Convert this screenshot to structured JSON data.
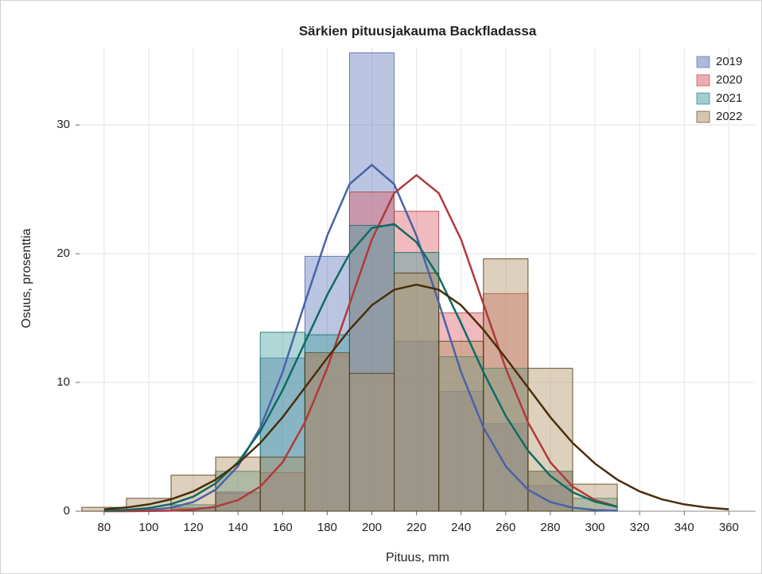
{
  "chart_data": {
    "type": "histogram",
    "title": "Särkien pituusjakauma Backfladassa",
    "x_label": "Pituus, mm",
    "y_label": "Osuus, prosenttia",
    "bins": [
      70,
      90,
      110,
      130,
      150,
      170,
      190,
      210,
      230,
      250,
      270,
      290,
      310
    ],
    "xlim": [
      69,
      372
    ],
    "ylim": [
      0,
      36
    ],
    "xticks": [
      80,
      100,
      120,
      140,
      160,
      180,
      200,
      220,
      240,
      260,
      280,
      300,
      320,
      340,
      360
    ],
    "yticks": [
      0,
      10,
      20,
      30
    ],
    "grid": true,
    "legend": "top-right",
    "series": [
      {
        "name": "2019",
        "color": "#5b74b8",
        "line_color": "#4b62a8",
        "values": [
          0,
          0,
          0.3,
          1.5,
          11.9,
          19.8,
          35.6,
          13.2,
          9.3,
          6.8,
          2,
          0
        ],
        "curve_x": [
          80,
          90,
          100,
          110,
          120,
          130,
          140,
          150,
          160,
          170,
          180,
          190,
          200,
          210,
          220,
          230,
          240,
          250,
          260,
          270,
          280,
          290,
          300,
          310
        ],
        "curve_values": [
          0.01,
          0.03,
          0.09,
          0.27,
          0.71,
          1.67,
          3.49,
          6.5,
          10.8,
          16.2,
          21.4,
          25.4,
          26.9,
          25.4,
          21.4,
          16.2,
          10.8,
          6.5,
          3.49,
          1.67,
          0.71,
          0.27,
          0.09,
          0.03
        ]
      },
      {
        "name": "2020",
        "color": "#dc5a64",
        "line_color": "#b03a3a",
        "values": [
          0,
          0,
          0.2,
          1.4,
          3,
          12.1,
          24.8,
          23.3,
          15.4,
          16.9,
          3.1,
          0
        ],
        "curve_x": [
          80,
          90,
          100,
          110,
          120,
          130,
          140,
          150,
          160,
          170,
          180,
          190,
          200,
          210,
          220,
          230,
          240,
          250,
          260,
          270,
          280,
          290,
          300,
          310
        ],
        "curve_values": [
          0.001,
          0.003,
          0.012,
          0.04,
          0.13,
          0.35,
          0.86,
          1.91,
          3.8,
          6.9,
          11.1,
          16.1,
          21.1,
          24.7,
          26.1,
          24.7,
          21.1,
          16.1,
          11.1,
          6.9,
          3.8,
          1.91,
          0.86,
          0.35
        ]
      },
      {
        "name": "2021",
        "color": "#42a09c",
        "line_color": "#0f6b63",
        "values": [
          0,
          0,
          0.5,
          3.1,
          13.9,
          13.7,
          22.2,
          20.1,
          12,
          11.1,
          3.1,
          1
        ],
        "curve_x": [
          80,
          90,
          100,
          110,
          120,
          130,
          140,
          150,
          160,
          170,
          180,
          190,
          200,
          210,
          220,
          230,
          240,
          250,
          260,
          270,
          280,
          290,
          300,
          310
        ],
        "curve_values": [
          0.04,
          0.1,
          0.24,
          0.55,
          1.13,
          2.16,
          3.81,
          6.2,
          9.4,
          13.1,
          16.8,
          20,
          22,
          22.3,
          20.9,
          18.2,
          14.6,
          10.8,
          7.4,
          4.7,
          2.74,
          1.47,
          0.74,
          0.34
        ]
      },
      {
        "name": "2022",
        "color": "#ad8e60",
        "line_color": "#4a2e0a",
        "values": [
          0.3,
          1,
          2.8,
          4.2,
          4.2,
          12.3,
          10.7,
          18.5,
          13.2,
          19.6,
          11.1,
          2.1
        ],
        "curve_x": [
          80,
          90,
          100,
          110,
          120,
          130,
          140,
          150,
          160,
          170,
          180,
          190,
          200,
          210,
          220,
          230,
          240,
          250,
          260,
          270,
          280,
          290,
          300,
          310,
          320,
          330,
          340,
          350,
          360
        ],
        "curve_values": [
          0.15,
          0.29,
          0.53,
          0.92,
          1.54,
          2.45,
          3.7,
          5.3,
          7.3,
          9.6,
          11.9,
          14.1,
          16,
          17.2,
          17.6,
          17.2,
          16,
          14.1,
          11.9,
          9.6,
          7.3,
          5.3,
          3.7,
          2.45,
          1.54,
          0.92,
          0.53,
          0.29,
          0.15
        ]
      }
    ]
  }
}
